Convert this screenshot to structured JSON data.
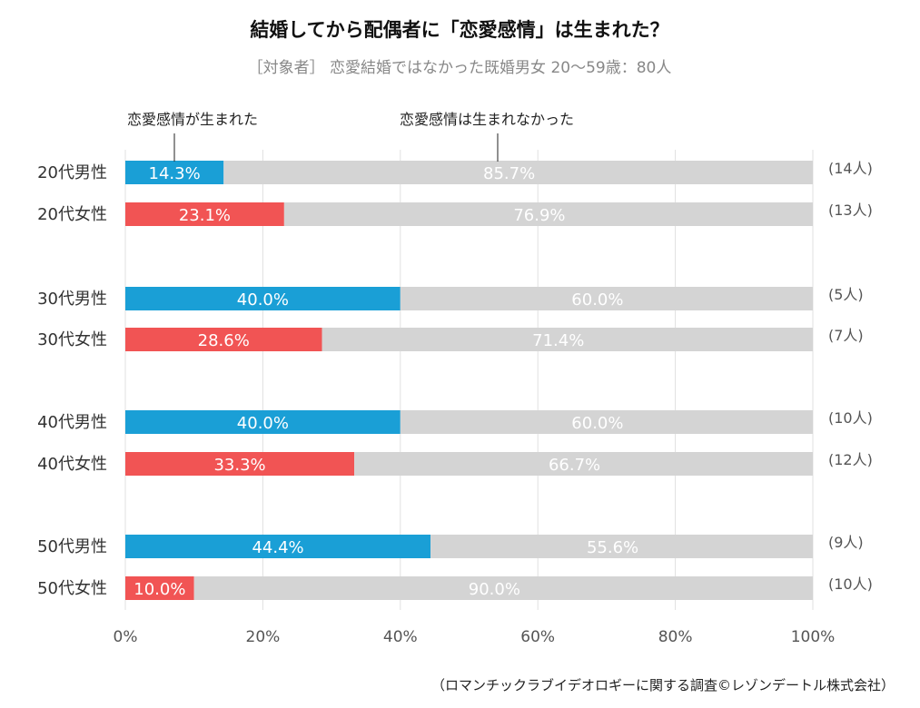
{
  "chart_data": {
    "type": "bar",
    "stacked": true,
    "orientation": "horizontal",
    "title": "結婚してから配偶者に「恋愛感情」は生まれた？",
    "subtitle": "［対象者］ 恋愛結婚ではなかった既婚男女 20〜59歳：80人",
    "source": "（ロマンチックラブイデオロギーに関する調査©レゾンデートル株式会社）",
    "categories": [
      "20代男性",
      "20代女性",
      "30代男性",
      "30代女性",
      "40代男性",
      "40代女性",
      "50代男性",
      "50代女性"
    ],
    "counts": [
      "(14人)",
      "(13人)",
      "(5人)",
      "(7人)",
      "(10人)",
      "(12人)",
      "(9人)",
      "(10人)"
    ],
    "series": [
      {
        "name": "恋愛感情が生まれた",
        "values": [
          14.3,
          23.1,
          40.0,
          28.6,
          40.0,
          33.3,
          44.4,
          10.0
        ]
      },
      {
        "name": "恋愛感情は生まれなかった",
        "values": [
          85.7,
          76.9,
          60.0,
          71.4,
          60.0,
          66.7,
          55.6,
          90.0
        ]
      }
    ],
    "value_labels": [
      [
        "14.3%",
        "23.1%",
        "40.0%",
        "28.6%",
        "40.0%",
        "33.3%",
        "44.4%",
        "10.0%"
      ],
      [
        "85.7%",
        "76.9%",
        "60.0%",
        "71.4%",
        "60.0%",
        "66.7%",
        "55.6%",
        "90.0%"
      ]
    ],
    "xlim": [
      0,
      100
    ],
    "xticks": [
      "0%",
      "20%",
      "40%",
      "60%",
      "80%",
      "100%"
    ],
    "grid": true,
    "legend": "top, callout labels",
    "colors": {
      "male": "#1a9fd6",
      "female": "#f15454",
      "no": "#d4d4d4"
    }
  }
}
